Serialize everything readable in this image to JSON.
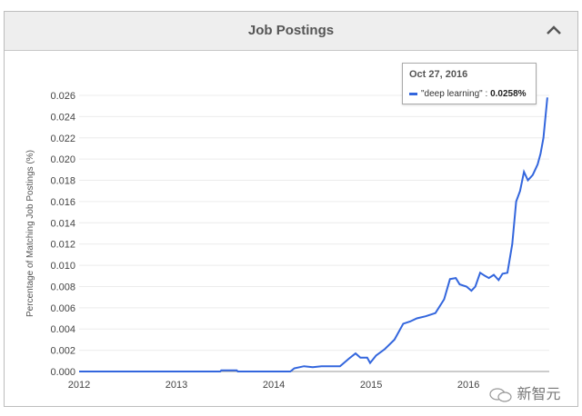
{
  "panel": {
    "title": "Job Postings",
    "collapse_icon": "chevron-up-icon"
  },
  "tooltip": {
    "date": "Oct 27, 2016",
    "series": "\"deep learning\"",
    "sep": ":",
    "value": "0.0258%"
  },
  "watermark": {
    "text": "新智元",
    "icon": "wechat-icon"
  },
  "chart_data": {
    "type": "line",
    "title": "Job Postings",
    "xlabel": "",
    "ylabel": "Percentage of Matching Job Postings (%)",
    "xlim": [
      2012,
      2016.83
    ],
    "ylim": [
      0,
      0.026
    ],
    "xticks": [
      "2012",
      "2013",
      "2014",
      "2015",
      "2016"
    ],
    "yticks": [
      "0.000",
      "0.002",
      "0.004",
      "0.006",
      "0.008",
      "0.010",
      "0.012",
      "0.014",
      "0.016",
      "0.018",
      "0.020",
      "0.022",
      "0.024",
      "0.026"
    ],
    "grid": true,
    "color": "#3366dd",
    "series": [
      {
        "name": "deep learning",
        "x": [
          2012.0,
          2013.45,
          2013.46,
          2013.62,
          2013.63,
          2014.17,
          2014.21,
          2014.31,
          2014.4,
          2014.49,
          2014.68,
          2014.77,
          2014.84,
          2014.89,
          2014.96,
          2014.99,
          2015.05,
          2015.14,
          2015.24,
          2015.33,
          2015.4,
          2015.47,
          2015.56,
          2015.66,
          2015.75,
          2015.81,
          2015.87,
          2015.91,
          2015.98,
          2016.03,
          2016.07,
          2016.12,
          2016.17,
          2016.21,
          2016.26,
          2016.31,
          2016.35,
          2016.4,
          2016.45,
          2016.49,
          2016.53,
          2016.57,
          2016.61,
          2016.66,
          2016.71,
          2016.74,
          2016.77,
          2016.81
        ],
        "y": [
          0,
          0,
          0.0001,
          0.0001,
          0,
          0,
          0.0003,
          0.0005,
          0.0004,
          0.0005,
          0.0005,
          0.0012,
          0.0017,
          0.0013,
          0.0013,
          0.0008,
          0.0015,
          0.0021,
          0.003,
          0.0045,
          0.0047,
          0.005,
          0.0052,
          0.0055,
          0.0068,
          0.0087,
          0.0088,
          0.0082,
          0.008,
          0.0076,
          0.008,
          0.0093,
          0.009,
          0.0088,
          0.0091,
          0.0086,
          0.0092,
          0.0093,
          0.012,
          0.016,
          0.017,
          0.0188,
          0.018,
          0.0185,
          0.0195,
          0.0205,
          0.022,
          0.0258
        ]
      }
    ]
  }
}
